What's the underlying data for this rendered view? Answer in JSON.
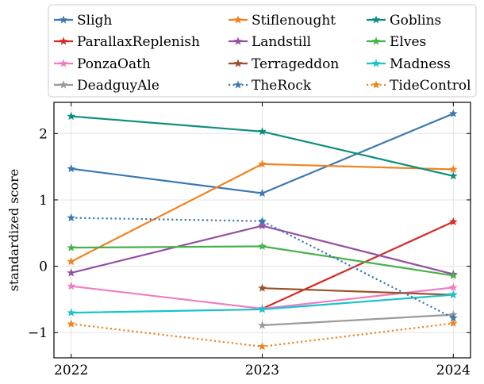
{
  "chart_data": {
    "type": "line",
    "title": "",
    "xlabel": "",
    "ylabel": "standardized score",
    "x": [
      2022,
      2023,
      2024
    ],
    "xlim": [
      2021.91,
      2024.09
    ],
    "ylim": [
      -1.38,
      2.47
    ],
    "yticks": [
      -1,
      0,
      1,
      2
    ],
    "ytick_labels": [
      "−1",
      "0",
      "1",
      "2"
    ],
    "xticks": [
      2022,
      2023,
      2024
    ],
    "xtick_labels": [
      "2022",
      "2023",
      "2024"
    ],
    "grid": true,
    "legend_position": "top, outside plot, 3 columns",
    "series": [
      {
        "name": "Sligh",
        "color": "#3a78b2",
        "dash": "solid",
        "values": [
          1.47,
          1.1,
          2.3
        ]
      },
      {
        "name": "Stiflenought",
        "color": "#f08320",
        "dash": "solid",
        "values": [
          0.07,
          1.54,
          1.46
        ]
      },
      {
        "name": "Goblins",
        "color": "#0b8f7d",
        "dash": "solid",
        "values": [
          2.26,
          2.03,
          1.36
        ]
      },
      {
        "name": "ParallaxReplenish",
        "color": "#d72a27",
        "dash": "solid",
        "values": [
          null,
          -0.64,
          0.67
        ]
      },
      {
        "name": "Landstill",
        "color": "#9450a2",
        "dash": "solid",
        "values": [
          -0.1,
          0.61,
          -0.12
        ]
      },
      {
        "name": "Elves",
        "color": "#47b149",
        "dash": "solid",
        "values": [
          0.28,
          0.3,
          -0.14
        ]
      },
      {
        "name": "PonzaOath",
        "color": "#f07dbf",
        "dash": "solid",
        "values": [
          -0.3,
          -0.64,
          -0.32
        ]
      },
      {
        "name": "Terrageddon",
        "color": "#9a5028",
        "dash": "solid",
        "values": [
          null,
          -0.33,
          -0.43
        ]
      },
      {
        "name": "Madness",
        "color": "#19c4cc",
        "dash": "solid",
        "values": [
          -0.7,
          -0.65,
          -0.43
        ]
      },
      {
        "name": "DeadguyAle",
        "color": "#9b9b9b",
        "dash": "solid",
        "values": [
          null,
          -0.89,
          -0.73
        ]
      },
      {
        "name": "TheRock",
        "color": "#3a78b2",
        "dash": "dotted",
        "values": [
          0.73,
          0.68,
          -0.78
        ]
      },
      {
        "name": "TideControl",
        "color": "#f08320",
        "dash": "dotted",
        "values": [
          -0.87,
          -1.21,
          -0.86
        ]
      }
    ]
  }
}
